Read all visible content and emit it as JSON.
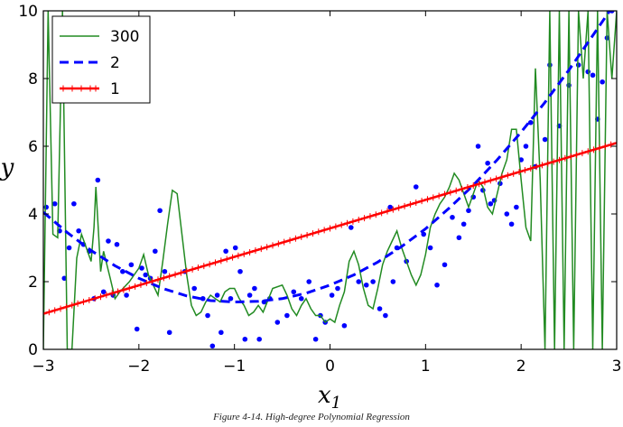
{
  "caption": "Figure 4-14. High-degree Polynomial Regression",
  "chart_data": {
    "type": "line",
    "xlabel": "x",
    "xlabel_subscript": "1",
    "ylabel": "y",
    "xlim": [
      -3,
      3
    ],
    "ylim": [
      0,
      10
    ],
    "xticks": [
      -3,
      -2,
      -1,
      0,
      1,
      2,
      3
    ],
    "xtick_labels": [
      "−3",
      "−2",
      "−1",
      "0",
      "1",
      "2",
      "3"
    ],
    "yticks": [
      0,
      2,
      4,
      6,
      8,
      10
    ],
    "ytick_labels": [
      "0",
      "2",
      "4",
      "6",
      "8",
      "10"
    ],
    "legend_position": "top-left",
    "legend": [
      {
        "label": "300",
        "color": "#228b22",
        "style": "solid"
      },
      {
        "label": "2",
        "color": "#0000ff",
        "style": "dashed"
      },
      {
        "label": "1",
        "color": "#ff0000",
        "style": "solid-plus"
      }
    ],
    "series": [
      {
        "name": "300",
        "color": "#228b22",
        "x": [
          -3.0,
          -2.95,
          -2.9,
          -2.85,
          -2.8,
          -2.75,
          -2.7,
          -2.65,
          -2.6,
          -2.55,
          -2.5,
          -2.47,
          -2.45,
          -2.42,
          -2.4,
          -2.37,
          -2.3,
          -2.25,
          -2.2,
          -2.1,
          -2.0,
          -1.95,
          -1.9,
          -1.8,
          -1.75,
          -1.7,
          -1.65,
          -1.6,
          -1.55,
          -1.5,
          -1.45,
          -1.4,
          -1.35,
          -1.3,
          -1.25,
          -1.2,
          -1.15,
          -1.1,
          -1.05,
          -1.0,
          -0.95,
          -0.9,
          -0.85,
          -0.8,
          -0.75,
          -0.7,
          -0.6,
          -0.5,
          -0.45,
          -0.4,
          -0.35,
          -0.3,
          -0.25,
          -0.2,
          -0.15,
          -0.1,
          -0.05,
          0.0,
          0.05,
          0.1,
          0.15,
          0.2,
          0.25,
          0.3,
          0.35,
          0.4,
          0.45,
          0.5,
          0.55,
          0.6,
          0.65,
          0.7,
          0.75,
          0.8,
          0.85,
          0.9,
          0.95,
          1.0,
          1.05,
          1.1,
          1.15,
          1.2,
          1.25,
          1.3,
          1.35,
          1.4,
          1.45,
          1.5,
          1.55,
          1.6,
          1.65,
          1.7,
          1.75,
          1.8,
          1.85,
          1.9,
          1.95,
          2.0,
          2.05,
          2.1,
          2.15,
          2.2,
          2.25,
          2.3,
          2.35,
          2.4,
          2.45,
          2.5,
          2.55,
          2.6,
          2.65,
          2.7,
          2.75,
          2.8,
          2.85,
          2.9,
          2.95,
          3.0
        ],
        "y": [
          0,
          10,
          3.4,
          3.3,
          10,
          0,
          0,
          2.7,
          3.4,
          3.0,
          2.6,
          3.6,
          4.8,
          3.3,
          2.3,
          2.9,
          2.1,
          1.5,
          1.7,
          2.0,
          2.4,
          2.8,
          2.2,
          1.6,
          2.6,
          3.7,
          4.7,
          4.6,
          3.4,
          2.2,
          1.3,
          1.0,
          1.1,
          1.4,
          1.6,
          1.5,
          1.4,
          1.7,
          1.8,
          1.8,
          1.5,
          1.3,
          1.0,
          1.1,
          1.3,
          1.1,
          1.8,
          1.9,
          1.6,
          1.2,
          1.0,
          1.3,
          1.5,
          1.2,
          1.0,
          1.0,
          0.8,
          0.9,
          0.8,
          1.3,
          1.7,
          2.6,
          2.9,
          2.5,
          1.8,
          1.3,
          1.2,
          1.8,
          2.5,
          2.9,
          3.2,
          3.5,
          3.0,
          2.6,
          2.2,
          1.9,
          2.2,
          2.8,
          3.6,
          4.0,
          4.3,
          4.5,
          4.8,
          5.2,
          5.0,
          4.6,
          4.2,
          4.6,
          5.0,
          4.8,
          4.2,
          4.0,
          4.6,
          5.2,
          5.6,
          6.5,
          6.5,
          5.0,
          3.6,
          3.2,
          8.3,
          5.0,
          0,
          10,
          0,
          10,
          0,
          10,
          0,
          10,
          8.0,
          10,
          0,
          10,
          0,
          10,
          8.0,
          10
        ]
      },
      {
        "name": "2",
        "color": "#0000ff",
        "x": [
          -3.0,
          -2.75,
          -2.5,
          -2.25,
          -2.0,
          -1.75,
          -1.5,
          -1.25,
          -1.0,
          -0.75,
          -0.5,
          -0.25,
          0.0,
          0.25,
          0.5,
          0.75,
          1.0,
          1.25,
          1.5,
          1.75,
          2.0,
          2.25,
          2.5,
          2.75,
          3.0
        ],
        "y": [
          4.05,
          3.45,
          2.92,
          2.47,
          2.1,
          1.8,
          1.58,
          1.44,
          1.4,
          1.42,
          1.5,
          1.66,
          1.9,
          2.2,
          2.58,
          3.04,
          3.56,
          4.18,
          4.85,
          5.6,
          6.42,
          7.3,
          8.25,
          9.27,
          10.3
        ]
      },
      {
        "name": "1",
        "color": "#ff0000",
        "x": [
          -3.0,
          3.0
        ],
        "y": [
          1.05,
          6.1
        ]
      }
    ],
    "scatter": {
      "color": "#0000ff",
      "x": [
        -2.97,
        -2.88,
        -2.83,
        -2.78,
        -2.73,
        -2.68,
        -2.63,
        -2.58,
        -2.52,
        -2.47,
        -2.43,
        -2.37,
        -2.32,
        -2.27,
        -2.23,
        -2.17,
        -2.13,
        -2.08,
        -2.02,
        -1.97,
        -1.93,
        -1.88,
        -1.83,
        -1.78,
        -1.73,
        -1.68,
        -1.52,
        -1.42,
        -1.33,
        -1.28,
        -1.23,
        -1.18,
        -1.14,
        -1.09,
        -1.04,
        -0.99,
        -0.94,
        -0.89,
        -0.84,
        -0.79,
        -0.74,
        -0.69,
        -0.63,
        -0.55,
        -0.45,
        -0.38,
        -0.3,
        -0.22,
        -0.15,
        -0.1,
        -0.05,
        0.02,
        0.08,
        0.15,
        0.22,
        0.3,
        0.38,
        0.45,
        0.52,
        0.58,
        0.63,
        0.66,
        0.7,
        0.8,
        0.9,
        0.98,
        1.05,
        1.12,
        1.2,
        1.28,
        1.35,
        1.4,
        1.45,
        1.5,
        1.55,
        1.6,
        1.65,
        1.68,
        1.72,
        1.78,
        1.85,
        1.9,
        1.95,
        2.0,
        2.05,
        2.1,
        2.15,
        2.25,
        2.3,
        2.4,
        2.5,
        2.6,
        2.7,
        2.75,
        2.8,
        2.85,
        2.9,
        2.95
      ],
      "y": [
        4.2,
        4.3,
        3.5,
        2.1,
        3.0,
        4.3,
        3.5,
        3.1,
        2.9,
        1.5,
        5.0,
        1.7,
        3.2,
        1.6,
        3.1,
        2.3,
        1.6,
        2.5,
        0.6,
        2.4,
        2.2,
        2.1,
        2.9,
        4.1,
        2.3,
        0.5,
        2.3,
        1.8,
        1.5,
        1.0,
        0.1,
        1.6,
        0.5,
        2.9,
        1.5,
        3.0,
        2.3,
        0.3,
        1.6,
        1.8,
        0.3,
        1.4,
        1.5,
        0.8,
        1.0,
        1.7,
        1.5,
        2.0,
        0.3,
        1.0,
        0.8,
        1.6,
        1.8,
        0.7,
        3.6,
        2.0,
        1.9,
        2.0,
        1.2,
        1.0,
        4.2,
        2.0,
        3.0,
        2.6,
        4.8,
        3.4,
        3.0,
        1.9,
        2.5,
        3.9,
        3.3,
        3.7,
        4.1,
        4.5,
        6.0,
        4.7,
        5.5,
        4.3,
        4.4,
        4.9,
        4.0,
        3.7,
        4.2,
        5.6,
        6.0,
        6.7,
        5.4,
        6.2,
        8.4,
        6.6,
        7.8,
        8.4,
        8.2,
        8.1,
        6.8,
        7.9,
        9.2,
        10.0
      ]
    }
  }
}
